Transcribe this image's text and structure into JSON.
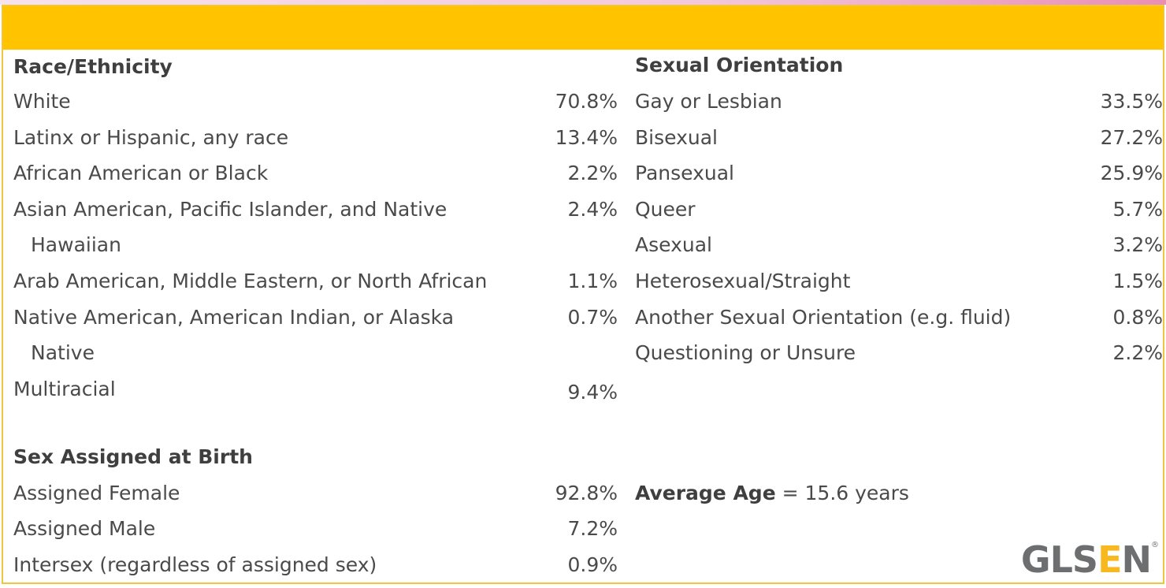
{
  "race": {
    "heading": "Race/Ethnicity",
    "rows": [
      {
        "label": "White",
        "value": "70.8%"
      },
      {
        "label": "Latinx or Hispanic, any race",
        "value": "13.4%"
      },
      {
        "label": "African American or Black",
        "value": "2.2%"
      },
      {
        "label": "Asian American, Pacific Islander, and Native",
        "cont": "Hawaiian",
        "value": "2.4%"
      },
      {
        "label": "Arab American, Middle Eastern, or North African",
        "value": "1.1%"
      },
      {
        "label": "Native American, American Indian, or Alaska",
        "cont": "Native",
        "value": "0.7%"
      },
      {
        "label": "Multiracial",
        "value": "9.4%"
      }
    ]
  },
  "sex": {
    "heading": "Sex Assigned at Birth",
    "rows": [
      {
        "label": "Assigned Female",
        "value": "92.8%"
      },
      {
        "label": "Assigned Male",
        "value": "7.2%"
      },
      {
        "label": "Intersex (regardless of assigned sex)",
        "value": "0.9%"
      }
    ]
  },
  "orientation": {
    "heading": "Sexual Orientation",
    "rows": [
      {
        "label": "Gay or Lesbian",
        "value": "33.5%"
      },
      {
        "label": "Bisexual",
        "value": "27.2%"
      },
      {
        "label": "Pansexual",
        "value": "25.9%"
      },
      {
        "label": "Queer",
        "value": "5.7%"
      },
      {
        "label": "Asexual",
        "value": "3.2%"
      },
      {
        "label": "Heterosexual/Straight",
        "value": "1.5%"
      },
      {
        "label": "Another Sexual Orientation (e.g. fluid)",
        "value": "0.8%"
      },
      {
        "label": "Questioning or Unsure",
        "value": "2.2%"
      }
    ]
  },
  "age": {
    "label": "Average Age",
    "value": "= 15.6 years"
  },
  "logo": {
    "text_a": "GLS",
    "text_b": "E",
    "text_c": "N",
    "reg": "®"
  },
  "colors": {
    "header": "#ffc300",
    "logo_gray": "#6d6e70",
    "logo_accent": "#f8b820"
  }
}
